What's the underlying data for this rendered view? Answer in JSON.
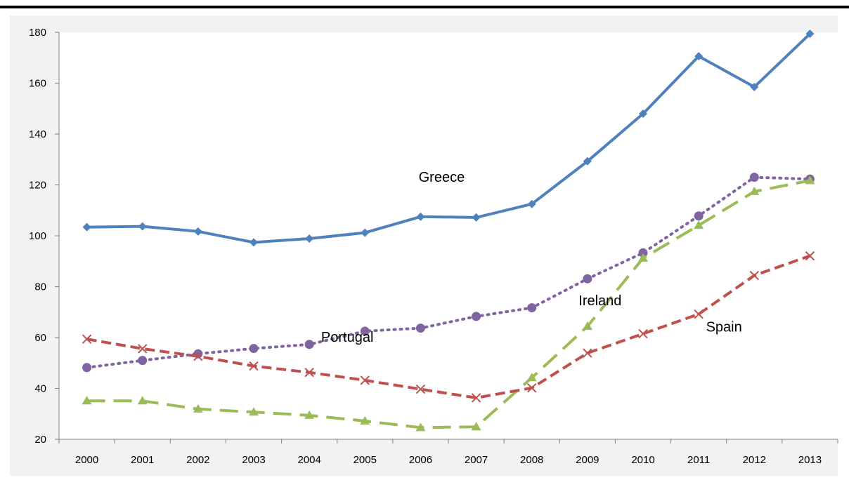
{
  "chart_data": {
    "type": "line",
    "title": "",
    "xlabel": "",
    "ylabel": "",
    "x": [
      "2000",
      "2001",
      "2002",
      "2003",
      "2004",
      "2005",
      "2006",
      "2007",
      "2008",
      "2009",
      "2010",
      "2011",
      "2012",
      "2013"
    ],
    "ylim": [
      20,
      180
    ],
    "yticks": [
      "20",
      "40",
      "60",
      "80",
      "100",
      "120",
      "140",
      "160",
      "180"
    ],
    "grid": false,
    "legend": "none (series labeled inline)",
    "series": [
      {
        "name": "Greece",
        "color": "#4F81BD",
        "marker": "diamond",
        "dash": "solid",
        "values": [
          103.4,
          103.7,
          101.7,
          97.4,
          98.9,
          101.2,
          107.5,
          107.2,
          112.5,
          129.3,
          148.0,
          170.6,
          158.5,
          179.4
        ]
      },
      {
        "name": "Portugal",
        "color": "#8064A2",
        "marker": "circle",
        "dash": "dotted",
        "values": [
          48.2,
          51.0,
          53.6,
          55.7,
          57.3,
          62.5,
          63.7,
          68.3,
          71.7,
          83.1,
          93.3,
          107.8,
          123.0,
          122.3
        ]
      },
      {
        "name": "Ireland",
        "color": "#9BBB59",
        "marker": "triangle",
        "dash": "long-dash",
        "values": [
          35.1,
          35.1,
          31.9,
          30.7,
          29.4,
          27.2,
          24.6,
          24.9,
          44.2,
          64.4,
          91.2,
          104.1,
          117.4,
          121.7
        ]
      },
      {
        "name": "Spain",
        "color": "#C0504D",
        "marker": "x",
        "dash": "dashed",
        "values": [
          59.4,
          55.6,
          52.6,
          48.8,
          46.3,
          43.2,
          39.7,
          36.3,
          40.2,
          53.9,
          61.5,
          69.2,
          84.4,
          92.1
        ]
      }
    ]
  }
}
